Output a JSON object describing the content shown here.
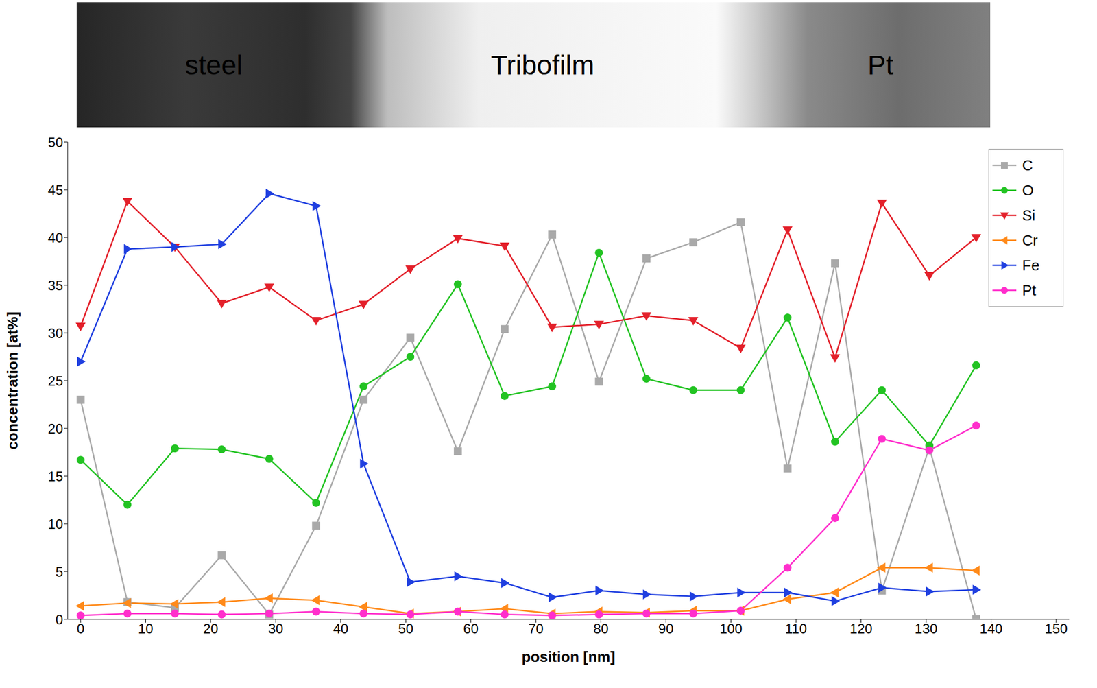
{
  "image": {
    "labels": [
      "steel",
      "Tribofilm",
      "Pt"
    ]
  },
  "chart_data": {
    "type": "line",
    "x_label": "position [nm]",
    "y_label": "concentration [at%]",
    "x": [
      0,
      7.2,
      14.5,
      21.7,
      29,
      36.2,
      43.5,
      50.7,
      58,
      65.2,
      72.5,
      79.7,
      87,
      94.2,
      101.5,
      108.7,
      116,
      123.2,
      130.5,
      137.7
    ],
    "series": [
      {
        "name": "C",
        "color": "#a9a9a9",
        "marker": "square",
        "values": [
          23,
          1.8,
          1.2,
          6.7,
          0.5,
          9.8,
          23,
          29.5,
          17.6,
          30.4,
          40.3,
          24.9,
          37.8,
          39.5,
          41.6,
          15.8,
          37.3,
          3,
          18,
          0
        ]
      },
      {
        "name": "O",
        "color": "#22c322",
        "marker": "circle",
        "values": [
          16.7,
          12,
          17.9,
          17.8,
          16.8,
          12.2,
          24.4,
          27.5,
          35.1,
          23.4,
          24.4,
          38.4,
          25.2,
          24,
          24,
          31.6,
          18.6,
          24,
          18.2,
          26.6
        ]
      },
      {
        "name": "Si",
        "color": "#e3202a",
        "marker": "triangle-down",
        "values": [
          30.7,
          43.8,
          39,
          33.1,
          34.8,
          31.3,
          33,
          36.7,
          39.9,
          39.1,
          30.6,
          30.9,
          31.8,
          31.3,
          28.4,
          40.8,
          27.4,
          43.6,
          36,
          40
        ]
      },
      {
        "name": "Cr",
        "color": "#ff8a1a",
        "marker": "triangle-left",
        "values": [
          1.4,
          1.7,
          1.6,
          1.8,
          2.2,
          2,
          1.3,
          0.6,
          0.8,
          1.1,
          0.6,
          0.8,
          0.7,
          0.9,
          0.9,
          2.1,
          2.8,
          5.4,
          5.4,
          5.1
        ]
      },
      {
        "name": "Fe",
        "color": "#1f3fe0",
        "marker": "triangle-right",
        "values": [
          27,
          38.8,
          39,
          39.3,
          44.6,
          43.3,
          16.3,
          3.9,
          4.5,
          3.8,
          2.3,
          3,
          2.6,
          2.4,
          2.8,
          2.8,
          1.9,
          3.3,
          2.9,
          3.1
        ]
      },
      {
        "name": "Pt",
        "color": "#ff2ecc",
        "marker": "circle",
        "values": [
          0.4,
          0.6,
          0.6,
          0.5,
          0.6,
          0.8,
          0.6,
          0.5,
          0.8,
          0.5,
          0.4,
          0.5,
          0.6,
          0.6,
          0.9,
          5.4,
          10.6,
          18.9,
          17.7,
          20.3
        ]
      }
    ],
    "xlim": [
      -2,
      152
    ],
    "xticks": [
      0,
      10,
      20,
      30,
      40,
      50,
      60,
      70,
      80,
      90,
      100,
      110,
      120,
      130,
      140,
      150
    ],
    "ylim": [
      0,
      50
    ],
    "yticks": [
      0,
      5,
      10,
      15,
      20,
      25,
      30,
      35,
      40,
      45,
      50
    ],
    "grid": false,
    "legend": "top-right"
  }
}
